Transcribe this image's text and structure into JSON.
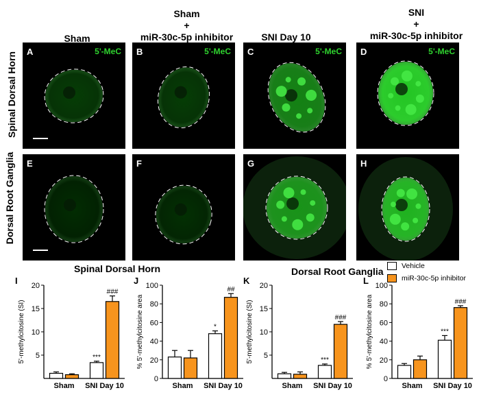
{
  "columns": [
    {
      "title": "Sham"
    },
    {
      "title": "Sham\n+\nmiR-30c-5p inhibitor"
    },
    {
      "title": "SNI Day 10"
    },
    {
      "title": "SNI\n+\nmiR-30c-5p inhibitor"
    }
  ],
  "rows": [
    {
      "title": "Spinal Dorsal Horn"
    },
    {
      "title": "Dorsal Root Ganglia"
    }
  ],
  "panels": [
    {
      "letter": "A",
      "marker": "5'-MeC",
      "intensity": 0.25
    },
    {
      "letter": "B",
      "marker": "5'-MeC",
      "intensity": 0.25
    },
    {
      "letter": "C",
      "marker": "5'-MeC",
      "intensity": 0.65
    },
    {
      "letter": "D",
      "marker": "5'-MeC",
      "intensity": 0.95
    },
    {
      "letter": "E",
      "marker": "",
      "intensity": 0.12
    },
    {
      "letter": "F",
      "marker": "",
      "intensity": 0.15
    },
    {
      "letter": "G",
      "marker": "",
      "intensity": 0.7
    },
    {
      "letter": "H",
      "marker": "",
      "intensity": 0.85
    }
  ],
  "section_titles": {
    "left": "Spinal Dorsal Horn",
    "right": "Dorsal Root Ganglia"
  },
  "legend": [
    {
      "label": "Vehicle",
      "color": "#ffffff"
    },
    {
      "label": "miR-30c-5p inhibitor",
      "color": "#f7941d"
    }
  ],
  "colors": {
    "vehicle": "#ffffff",
    "inhibitor": "#f7941d",
    "marker_green": "#2fd32f"
  },
  "chart_data": [
    {
      "letter": "I",
      "type": "bar",
      "categories": [
        "Sham",
        "SNI Day 10"
      ],
      "series": [
        {
          "name": "Vehicle",
          "values": [
            1.1,
            3.4
          ],
          "errors": [
            0.3,
            0.3
          ]
        },
        {
          "name": "miR-30c-5p inhibitor",
          "values": [
            0.8,
            16.5
          ],
          "errors": [
            0.2,
            1.2
          ]
        }
      ],
      "ylabel": "5'-methylcitosine (SI)",
      "ylim": [
        0,
        20
      ],
      "yticks": [
        5,
        10,
        15,
        20
      ],
      "annotations": [
        {
          "series": 0,
          "category": 1,
          "text": "***"
        },
        {
          "series": 1,
          "category": 1,
          "text": "###"
        }
      ]
    },
    {
      "letter": "J",
      "type": "bar",
      "categories": [
        "Sham",
        "SNI Day 10"
      ],
      "series": [
        {
          "name": "Vehicle",
          "values": [
            23,
            48
          ],
          "errors": [
            7,
            3
          ]
        },
        {
          "name": "miR-30c-5p inhibitor",
          "values": [
            22,
            87
          ],
          "errors": [
            8,
            4
          ]
        }
      ],
      "ylabel": "% 5'-methylcitosine area",
      "ylim": [
        0,
        100
      ],
      "yticks": [
        0,
        20,
        40,
        60,
        80,
        100
      ],
      "annotations": [
        {
          "series": 0,
          "category": 1,
          "text": "*"
        },
        {
          "series": 1,
          "category": 1,
          "text": "##"
        }
      ]
    },
    {
      "letter": "K",
      "type": "bar",
      "categories": [
        "Sham",
        "SNI Day 10"
      ],
      "series": [
        {
          "name": "Vehicle",
          "values": [
            1.0,
            2.8
          ],
          "errors": [
            0.3,
            0.3
          ]
        },
        {
          "name": "miR-30c-5p inhibitor",
          "values": [
            0.9,
            11.6
          ],
          "errors": [
            0.5,
            0.6
          ]
        }
      ],
      "ylabel": "5'-methylcitosine (SI)",
      "ylim": [
        0,
        20
      ],
      "yticks": [
        5,
        10,
        15,
        20
      ],
      "annotations": [
        {
          "series": 0,
          "category": 1,
          "text": "***"
        },
        {
          "series": 1,
          "category": 1,
          "text": "###"
        }
      ]
    },
    {
      "letter": "L",
      "type": "bar",
      "categories": [
        "Sham",
        "SNI Day 10"
      ],
      "series": [
        {
          "name": "Vehicle",
          "values": [
            14,
            41
          ],
          "errors": [
            2,
            5
          ]
        },
        {
          "name": "miR-30c-5p inhibitor",
          "values": [
            20,
            76
          ],
          "errors": [
            4,
            2
          ]
        }
      ],
      "ylabel": "% 5'-methylcitosine area",
      "ylim": [
        0,
        100
      ],
      "yticks": [
        0,
        20,
        40,
        60,
        80,
        100
      ],
      "annotations": [
        {
          "series": 0,
          "category": 1,
          "text": "***"
        },
        {
          "series": 1,
          "category": 1,
          "text": "###"
        }
      ]
    }
  ]
}
